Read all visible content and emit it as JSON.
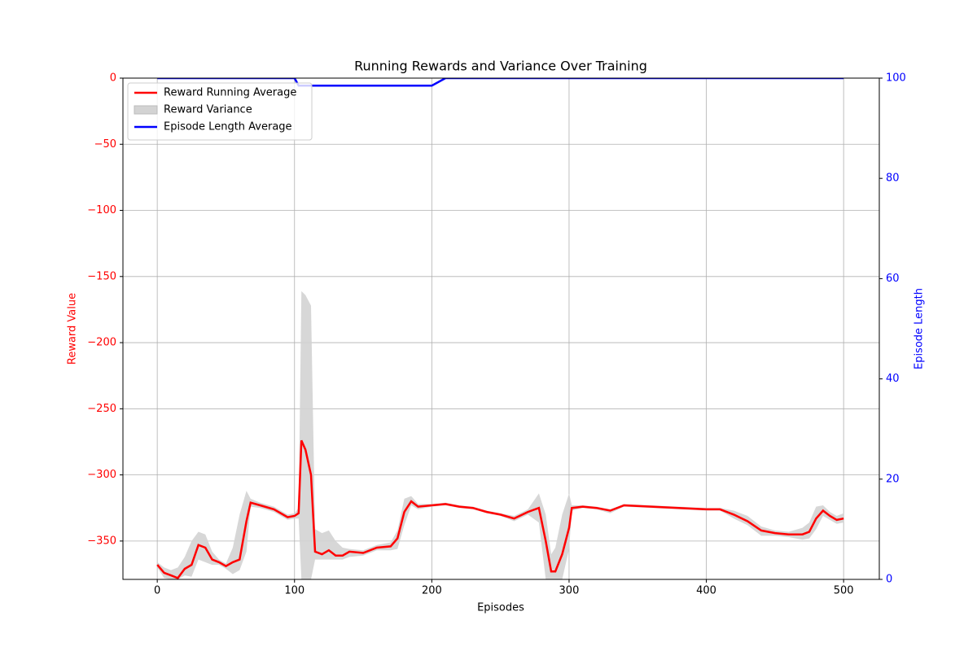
{
  "chart_data": {
    "type": "line",
    "title": "Running Rewards and Variance Over Training",
    "xlabel": "Episodes",
    "ylabel": "Reward Value",
    "y2label": "Episode Length",
    "x": [
      0,
      5,
      10,
      15,
      20,
      25,
      30,
      35,
      40,
      45,
      50,
      55,
      60,
      65,
      68,
      75,
      85,
      95,
      100,
      103,
      105,
      108,
      112,
      115,
      120,
      125,
      130,
      135,
      140,
      150,
      160,
      170,
      175,
      180,
      185,
      190,
      200,
      210,
      220,
      230,
      240,
      250,
      260,
      270,
      278,
      283,
      287,
      290,
      295,
      300,
      302,
      310,
      320,
      330,
      340,
      360,
      380,
      400,
      410,
      420,
      430,
      440,
      450,
      460,
      470,
      475,
      480,
      485,
      490,
      495,
      500
    ],
    "series": [
      {
        "name": "Reward Running Average",
        "color": "#ff0000",
        "values": [
          -368,
          -374,
          -376,
          -378,
          -371,
          -368,
          -353,
          -355,
          -364,
          -366,
          -369,
          -366,
          -364,
          -335,
          -321,
          -323,
          -326,
          -332,
          -331,
          -329,
          -274,
          -281,
          -300,
          -358,
          -360,
          -357,
          -361,
          -361,
          -358,
          -359,
          -355,
          -354,
          -348,
          -328,
          -320,
          -324,
          -323,
          -322,
          -324,
          -325,
          -328,
          -330,
          -333,
          -328,
          -325,
          -350,
          -373,
          -373,
          -360,
          -340,
          -325,
          -324,
          -325,
          -327,
          -323,
          -324,
          -325,
          -326,
          -326,
          -330,
          -335,
          -342,
          -344,
          -345,
          -345,
          -343,
          -333,
          -327,
          -331,
          -334,
          -333
        ]
      },
      {
        "name": "Reward Variance",
        "color": "#d3d3d3",
        "upper": [
          -366,
          -370,
          -372,
          -370,
          -362,
          -350,
          -343,
          -345,
          -358,
          -364,
          -367,
          -355,
          -330,
          -312,
          -318,
          -321,
          -324,
          -330,
          -329,
          -325,
          -161,
          -164,
          -172,
          -341,
          -344,
          -342,
          -350,
          -355,
          -356,
          -357,
          -353,
          -351,
          -342,
          -318,
          -316,
          -322,
          -322,
          -321,
          -323,
          -324,
          -327,
          -329,
          -331,
          -326,
          -314,
          -330,
          -360,
          -355,
          -330,
          -314,
          -323,
          -323,
          -324,
          -326,
          -322,
          -323,
          -324,
          -325,
          -325,
          -327,
          -331,
          -339,
          -342,
          -343,
          -340,
          -336,
          -324,
          -323,
          -328,
          -331,
          -329
        ],
        "lower": [
          -370,
          -378,
          -379,
          -379,
          -376,
          -377,
          -364,
          -366,
          -368,
          -368,
          -371,
          -375,
          -372,
          -358,
          -324,
          -325,
          -328,
          -334,
          -333,
          -333,
          -379,
          -379,
          -379,
          -364,
          -364,
          -364,
          -364,
          -364,
          -362,
          -361,
          -357,
          -357,
          -356,
          -338,
          -323,
          -326,
          -324,
          -323,
          -325,
          -326,
          -329,
          -331,
          -335,
          -330,
          -336,
          -379,
          -379,
          -379,
          -379,
          -356,
          -327,
          -325,
          -326,
          -329,
          -324,
          -325,
          -326,
          -327,
          -327,
          -333,
          -338,
          -346,
          -346,
          -347,
          -349,
          -348,
          -341,
          -331,
          -334,
          -337,
          -336
        ]
      },
      {
        "name": "Episode Length Average",
        "color": "#0000ff",
        "axis": "y2",
        "values": [
          100,
          100,
          100,
          100,
          100,
          100,
          100,
          100,
          100,
          100,
          100,
          100,
          100,
          100,
          100,
          100,
          100,
          100,
          100,
          98.5,
          98.5,
          98.5,
          98.5,
          98.5,
          98.5,
          98.5,
          98.5,
          98.5,
          98.5,
          98.5,
          98.5,
          98.5,
          98.5,
          98.5,
          98.5,
          98.5,
          98.5,
          100,
          100,
          100,
          100,
          100,
          100,
          100,
          100,
          100,
          100,
          100,
          100,
          100,
          100,
          100,
          100,
          100,
          100,
          100,
          100,
          100,
          100,
          100,
          100,
          100,
          100,
          100,
          100,
          100,
          100,
          100,
          100,
          100,
          100
        ]
      }
    ],
    "xlim": [
      -25,
      526
    ],
    "ylim": [
      -379,
      0
    ],
    "y2lim": [
      0,
      100
    ],
    "xticks": [
      0,
      100,
      200,
      300,
      400,
      500
    ],
    "yticks": [
      0,
      {
        "value": -50,
        "label": "−50"
      },
      {
        "value": -100,
        "label": "−100"
      },
      {
        "value": -150,
        "label": "−150"
      },
      {
        "value": -200,
        "label": "−200"
      },
      {
        "value": -250,
        "label": "−250"
      },
      {
        "value": -300,
        "label": "−300"
      },
      {
        "value": -350,
        "label": "−350"
      }
    ],
    "y2ticks": [
      0,
      20,
      40,
      60,
      80,
      100
    ],
    "grid": true,
    "legend": "upper left"
  }
}
